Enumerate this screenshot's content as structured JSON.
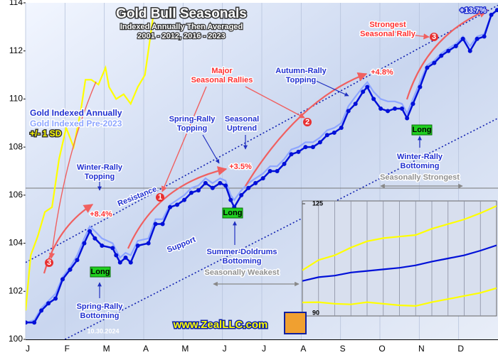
{
  "chart_data": [
    {
      "type": "line",
      "title": "Gold Bull Seasonals",
      "subtitle": [
        "Indexed Annually Then Averaged",
        "2001 - 2012, 2016 - 2023"
      ],
      "x": [
        0,
        0.22,
        0.4,
        0.58,
        0.76,
        0.94,
        1.13,
        1.31,
        1.49,
        1.63,
        1.76,
        1.94,
        2.21,
        2.3,
        2.4,
        2.54,
        2.67,
        2.85,
        3.12,
        3.3,
        3.48,
        3.67,
        3.85,
        4.03,
        4.21,
        4.39,
        4.57,
        4.75,
        4.94,
        5.08,
        5.21,
        5.3,
        5.48,
        5.66,
        5.84,
        6.03,
        6.21,
        6.39,
        6.57,
        6.75,
        6.93,
        7.11,
        7.3,
        7.48,
        7.66,
        7.84,
        8.02,
        8.2,
        8.38,
        8.57,
        8.68,
        8.84,
        9.02,
        9.2,
        9.38,
        9.56,
        9.69,
        9.84,
        10.02,
        10.2,
        10.38,
        10.56,
        10.74,
        10.93,
        11.11,
        11.29,
        11.47,
        11.65,
        11.83,
        11.98
      ],
      "series": [
        {
          "name": "Gold Indexed Annually",
          "color": "#0010d8",
          "values": [
            100.7,
            100.7,
            101.2,
            101.5,
            101.7,
            102.5,
            102.9,
            103.3,
            104.0,
            104.5,
            104.2,
            103.9,
            103.8,
            103.5,
            103.2,
            103.4,
            103.2,
            103.9,
            104.0,
            104.8,
            104.8,
            105.5,
            105.6,
            105.8,
            106.1,
            106.2,
            106.5,
            106.3,
            106.5,
            106.4,
            105.8,
            105.5,
            106.0,
            106.3,
            106.5,
            106.7,
            107.0,
            107.0,
            107.3,
            107.7,
            107.8,
            108.0,
            108.0,
            108.2,
            108.5,
            108.6,
            108.8,
            109.5,
            109.8,
            110.3,
            110.5,
            110.0,
            109.6,
            109.5,
            109.6,
            109.6,
            109.2,
            109.8,
            110.5,
            111.3,
            111.5,
            111.8,
            112.0,
            112.2,
            112.5,
            112.0,
            112.5,
            112.6,
            113.5,
            113.7
          ]
        },
        {
          "name": "Gold Indexed Pre-2023",
          "color": "#8ea6ff",
          "values": [
            100.7,
            100.8,
            101.3,
            101.6,
            101.9,
            102.6,
            103.0,
            103.5,
            104.2,
            104.7,
            104.5,
            104.2,
            104.0,
            103.7,
            103.4,
            103.6,
            103.5,
            104.1,
            104.2,
            105.0,
            105.0,
            105.6,
            105.8,
            106.0,
            106.3,
            106.4,
            106.7,
            106.5,
            106.7,
            106.6,
            106.0,
            105.8,
            106.2,
            106.5,
            106.7,
            106.9,
            107.2,
            107.2,
            107.5,
            107.9,
            108.0,
            108.2,
            108.2,
            108.4,
            108.7,
            108.8,
            109.0,
            109.7,
            110.1,
            110.5,
            110.7,
            110.3,
            110.0,
            109.9,
            109.9,
            109.8,
            109.4,
            110.0,
            110.7,
            111.4,
            111.6,
            111.9,
            112.1,
            112.3,
            112.6,
            112.2,
            112.6,
            112.7,
            113.5,
            113.7
          ]
        },
        {
          "name": "+/- 1 SD",
          "color": "#ffff00",
          "x": [
            0,
            0.13,
            0.31,
            0.49,
            0.67,
            0.85,
            1.03,
            1.22,
            1.4,
            1.52,
            1.67,
            1.85,
            2.03,
            2.12,
            2.3,
            2.49,
            2.67,
            2.85,
            3.03,
            3.16,
            3.27
          ],
          "values": [
            101.2,
            103.5,
            104.3,
            105.3,
            105.5,
            107.5,
            108.8,
            108.0,
            109.5,
            110.8,
            110.8,
            110.6,
            111.3,
            110.5,
            110.0,
            110.2,
            109.8,
            110.5,
            111.0,
            112.5,
            113.8
          ]
        }
      ],
      "channels": [
        {
          "x": [
            0,
            12
          ],
          "values": [
            103.2,
            113.9
          ]
        },
        {
          "x": [
            1,
            12
          ],
          "values": [
            100.0,
            109.2
          ]
        }
      ],
      "xlim": [
        0,
        12
      ],
      "xticks": [
        {
          "value": 0,
          "label": "J"
        },
        {
          "value": 1,
          "label": "F"
        },
        {
          "value": 2,
          "label": "M"
        },
        {
          "value": 3,
          "label": "A"
        },
        {
          "value": 4,
          "label": "M"
        },
        {
          "value": 5,
          "label": "J"
        },
        {
          "value": 6,
          "label": "J"
        },
        {
          "value": 7,
          "label": "A"
        },
        {
          "value": 8,
          "label": "S"
        },
        {
          "value": 9,
          "label": "O"
        },
        {
          "value": 10,
          "label": "N"
        },
        {
          "value": 11,
          "label": "D"
        }
      ],
      "ylim": [
        100,
        114
      ],
      "yticks": [
        100,
        102,
        104,
        106,
        108,
        110,
        112,
        114
      ],
      "grid": true,
      "annotations": [
        [
          "Major",
          "Seasonal Rallies"
        ],
        [
          "Strongest",
          "Seasonal Rally"
        ],
        [
          "Autumn-Rally",
          "Topping"
        ],
        [
          "+4.8%"
        ],
        [
          "Spring-Rally",
          "Topping"
        ],
        [
          "Seasonal",
          "Uptrend"
        ],
        [
          "+3.5%"
        ],
        [
          "Winter-Rally",
          "Topping"
        ],
        [
          "+8.4%"
        ],
        [
          "Resistance"
        ],
        [
          "Support"
        ],
        [
          "Long"
        ],
        [
          "Long"
        ],
        [
          "Long"
        ],
        [
          "Spring-Rally",
          "Bottoming"
        ],
        [
          "Summer-Doldrums",
          "Bottoming"
        ],
        [
          "Seasonally Weakest"
        ],
        [
          "Seasonally Strongest"
        ],
        [
          "Winter-Rally",
          "Bottoming"
        ],
        [
          "+13.7%"
        ],
        [
          "1"
        ],
        [
          "2"
        ],
        [
          "3"
        ],
        [
          "3"
        ]
      ],
      "source": "www.ZealLLC.com",
      "date": "10.30.2024"
    },
    {
      "type": "line",
      "x": [
        0,
        1,
        2,
        3,
        4,
        5,
        6,
        7,
        8,
        9,
        10,
        11,
        12
      ],
      "series": [
        {
          "color": "#ffff00",
          "values": [
            103.7,
            107,
            108.5,
            111,
            113,
            114,
            114.5,
            115,
            117,
            118.5,
            120,
            122,
            124.3
          ]
        },
        {
          "color": "#0010d8",
          "values": [
            100.3,
            101.5,
            102,
            103,
            103.5,
            104,
            104.5,
            105.3,
            106.5,
            107.5,
            108.5,
            110,
            111.7
          ]
        },
        {
          "color": "#ffff00",
          "values": [
            93.4,
            93.5,
            93,
            92.8,
            93.5,
            93,
            92.5,
            92.3,
            93.5,
            94.5,
            95.5,
            96.5,
            98
          ]
        }
      ],
      "xlim": [
        0,
        12
      ],
      "ylim": [
        90,
        125
      ],
      "yticks": [
        90,
        125
      ]
    }
  ]
}
